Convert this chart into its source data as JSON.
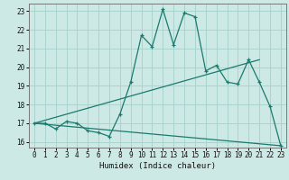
{
  "xlabel": "Humidex (Indice chaleur)",
  "background_color": "#cce9e5",
  "grid_color": "#aad4cf",
  "line_color": "#1a7a6e",
  "xlim": [
    -0.5,
    23.5
  ],
  "ylim": [
    15.7,
    23.4
  ],
  "xticks": [
    0,
    1,
    2,
    3,
    4,
    5,
    6,
    7,
    8,
    9,
    10,
    11,
    12,
    13,
    14,
    15,
    16,
    17,
    18,
    19,
    20,
    21,
    22,
    23
  ],
  "yticks": [
    16,
    17,
    18,
    19,
    20,
    21,
    22,
    23
  ],
  "curve1_x": [
    0,
    1,
    2,
    3,
    4,
    5,
    6,
    7,
    8,
    9,
    10,
    11,
    12,
    13,
    14,
    15,
    16,
    17,
    18,
    19,
    20,
    21,
    22,
    23
  ],
  "curve1_y": [
    17.0,
    17.0,
    16.7,
    17.1,
    17.0,
    16.6,
    16.5,
    16.3,
    17.5,
    19.2,
    21.7,
    21.1,
    23.1,
    21.2,
    22.9,
    22.7,
    19.8,
    20.1,
    19.2,
    19.1,
    20.4,
    19.2,
    17.9,
    15.8
  ],
  "curve2_x": [
    0,
    21
  ],
  "curve2_y": [
    17.0,
    20.4
  ],
  "curve3_x": [
    0,
    23
  ],
  "curve3_y": [
    17.0,
    15.8
  ]
}
